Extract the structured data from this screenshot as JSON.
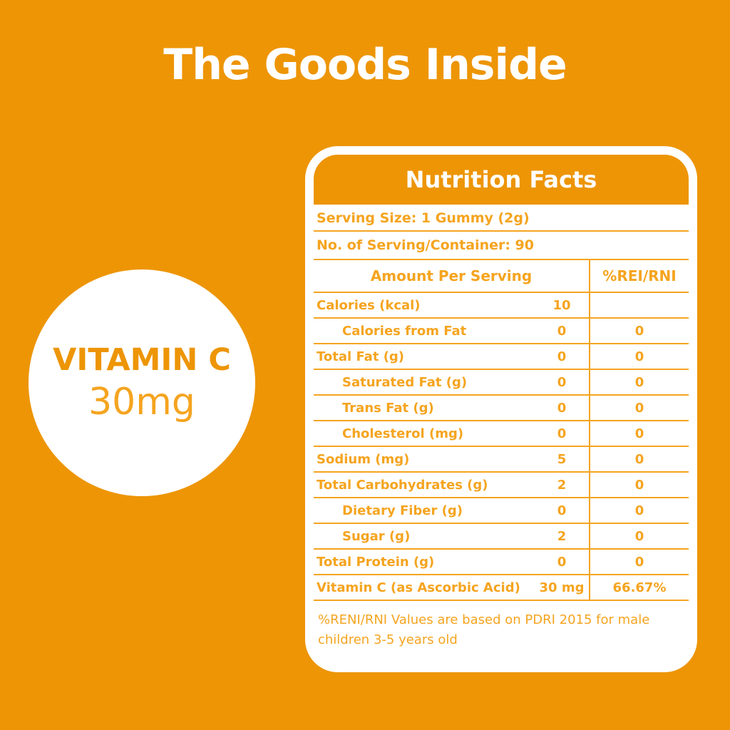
{
  "page": {
    "title": "The Goods Inside",
    "background_color": "#ED9505",
    "accent_color": "#F5A41F",
    "card_color": "#FFFFFF"
  },
  "badge": {
    "name": "VITAMIN C",
    "amount": "30mg"
  },
  "nutrition": {
    "title": "Nutrition Facts",
    "serving_size": "Serving Size: 1 Gummy (2g)",
    "servings_per_container": "No. of Serving/Container: 90",
    "columns": {
      "amount_header": "Amount Per Serving",
      "pct_header": "%REI/RNI"
    },
    "rows": [
      {
        "label": "Calories (kcal)",
        "amount": "10",
        "pct": "",
        "indent": false
      },
      {
        "label": "Calories from Fat",
        "amount": "0",
        "pct": "0",
        "indent": true
      },
      {
        "label": "Total Fat (g)",
        "amount": "0",
        "pct": "0",
        "indent": false
      },
      {
        "label": "Saturated Fat (g)",
        "amount": "0",
        "pct": "0",
        "indent": true
      },
      {
        "label": "Trans Fat (g)",
        "amount": "0",
        "pct": "0",
        "indent": true
      },
      {
        "label": "Cholesterol (mg)",
        "amount": "0",
        "pct": "0",
        "indent": true
      },
      {
        "label": "Sodium (mg)",
        "amount": "5",
        "pct": "0",
        "indent": false
      },
      {
        "label": "Total Carbohydrates (g)",
        "amount": "2",
        "pct": "0",
        "indent": false
      },
      {
        "label": "Dietary Fiber (g)",
        "amount": "0",
        "pct": "0",
        "indent": true
      },
      {
        "label": "Sugar (g)",
        "amount": "2",
        "pct": "0",
        "indent": true
      },
      {
        "label": "Total Protein (g)",
        "amount": "0",
        "pct": "0",
        "indent": false
      },
      {
        "label": "Vitamin C (as Ascorbic Acid)",
        "amount": "30 mg",
        "pct": "66.67%",
        "indent": false
      }
    ],
    "footnote": "%RENI/RNI Values are based on PDRI 2015 for male children 3-5 years old"
  }
}
